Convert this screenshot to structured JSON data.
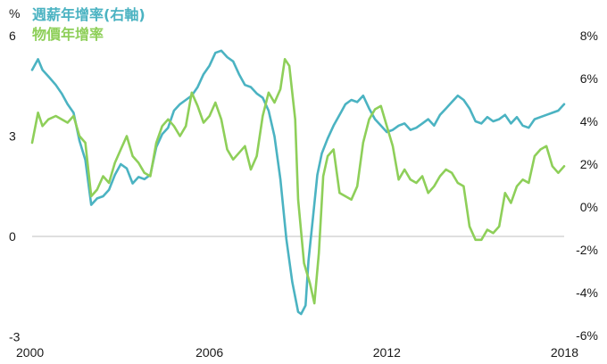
{
  "chart_data": {
    "type": "line",
    "title": "",
    "left_axis_unit": "%",
    "left_ylim": [
      -3,
      6
    ],
    "left_ticks": [
      "6",
      "3",
      "0",
      "-3"
    ],
    "left_tick_values": [
      6,
      3,
      0,
      -3
    ],
    "right_ylim": [
      -6,
      8
    ],
    "right_ticks": [
      "8%",
      "6%",
      "4%",
      "2%",
      "0%",
      "-2%",
      "-4%",
      "-6%"
    ],
    "right_tick_values": [
      8,
      6,
      4,
      2,
      0,
      -2,
      -4,
      -6
    ],
    "xlim": [
      2000,
      2018
    ],
    "x_ticks": [
      "2000",
      "2006",
      "2012",
      "2018"
    ],
    "x_tick_values": [
      2000,
      2006,
      2012,
      2018
    ],
    "grid": false,
    "legend_position": "top-left",
    "series": [
      {
        "name": "週薪年增率(右軸)",
        "axis": "right",
        "color": "#4bb3c2",
        "x": [
          2000.0,
          2000.2,
          2000.35,
          2000.55,
          2000.8,
          2001.0,
          2001.2,
          2001.4,
          2001.6,
          2001.8,
          2002.0,
          2002.2,
          2002.4,
          2002.6,
          2002.8,
          2003.0,
          2003.2,
          2003.4,
          2003.6,
          2003.8,
          2004.0,
          2004.2,
          2004.4,
          2004.6,
          2004.8,
          2005.0,
          2005.2,
          2005.4,
          2005.6,
          2005.8,
          2006.0,
          2006.2,
          2006.4,
          2006.6,
          2006.8,
          2007.0,
          2007.2,
          2007.4,
          2007.6,
          2007.8,
          2008.0,
          2008.2,
          2008.4,
          2008.6,
          2008.8,
          2009.0,
          2009.1,
          2009.25,
          2009.35,
          2009.5,
          2009.65,
          2009.8,
          2010.0,
          2010.2,
          2010.4,
          2010.6,
          2010.8,
          2011.0,
          2011.2,
          2011.4,
          2011.6,
          2011.8,
          2012.0,
          2012.2,
          2012.4,
          2012.6,
          2012.8,
          2013.0,
          2013.2,
          2013.4,
          2013.6,
          2013.8,
          2014.0,
          2014.2,
          2014.4,
          2014.6,
          2014.8,
          2015.0,
          2015.2,
          2015.4,
          2015.6,
          2015.8,
          2016.0,
          2016.2,
          2016.4,
          2016.6,
          2016.8,
          2017.0,
          2017.2,
          2017.4,
          2017.6,
          2017.8,
          2018.0
        ],
        "values": [
          6.4,
          6.9,
          6.4,
          6.1,
          5.7,
          5.3,
          4.8,
          4.4,
          3.1,
          2.2,
          0.1,
          0.4,
          0.5,
          0.8,
          1.5,
          2.0,
          1.8,
          1.1,
          1.4,
          1.3,
          1.5,
          2.8,
          3.4,
          3.7,
          4.5,
          4.8,
          5.0,
          5.2,
          5.6,
          6.2,
          6.6,
          7.2,
          7.3,
          7.0,
          6.8,
          6.2,
          5.7,
          5.6,
          5.3,
          5.1,
          4.5,
          3.3,
          1.3,
          -1.5,
          -3.5,
          -4.9,
          -5.0,
          -4.6,
          -2.5,
          -0.5,
          1.5,
          2.5,
          3.2,
          3.8,
          4.3,
          4.8,
          5.0,
          4.9,
          5.2,
          4.6,
          4.1,
          3.8,
          3.5,
          3.6,
          3.8,
          3.9,
          3.6,
          3.7,
          3.9,
          4.1,
          3.8,
          4.3,
          4.6,
          4.9,
          5.2,
          5.0,
          4.6,
          4.0,
          3.9,
          4.2,
          4.0,
          4.1,
          4.3,
          3.9,
          4.2,
          3.8,
          3.7,
          4.1,
          4.2,
          4.3,
          4.4,
          4.5,
          4.8
        ]
      },
      {
        "name": "物價年增率",
        "axis": "left",
        "color": "#8ecf59",
        "x": [
          2000.0,
          2000.2,
          2000.35,
          2000.55,
          2000.8,
          2001.0,
          2001.2,
          2001.4,
          2001.6,
          2001.8,
          2002.0,
          2002.2,
          2002.4,
          2002.6,
          2002.8,
          2003.0,
          2003.2,
          2003.4,
          2003.6,
          2003.8,
          2004.0,
          2004.2,
          2004.4,
          2004.6,
          2004.8,
          2005.0,
          2005.2,
          2005.4,
          2005.6,
          2005.8,
          2006.0,
          2006.2,
          2006.4,
          2006.6,
          2006.8,
          2007.0,
          2007.2,
          2007.4,
          2007.6,
          2007.8,
          2008.0,
          2008.2,
          2008.4,
          2008.55,
          2008.7,
          2008.9,
          2009.0,
          2009.2,
          2009.4,
          2009.55,
          2009.7,
          2009.85,
          2010.0,
          2010.2,
          2010.4,
          2010.6,
          2010.8,
          2011.0,
          2011.2,
          2011.4,
          2011.6,
          2011.8,
          2012.0,
          2012.2,
          2012.4,
          2012.6,
          2012.8,
          2013.0,
          2013.2,
          2013.4,
          2013.6,
          2013.8,
          2014.0,
          2014.2,
          2014.4,
          2014.6,
          2014.8,
          2015.0,
          2015.2,
          2015.4,
          2015.6,
          2015.8,
          2016.0,
          2016.2,
          2016.4,
          2016.6,
          2016.8,
          2017.0,
          2017.2,
          2017.4,
          2017.6,
          2017.8,
          2018.0
        ],
        "values": [
          2.8,
          3.7,
          3.3,
          3.5,
          3.6,
          3.5,
          3.4,
          3.6,
          3.0,
          2.8,
          1.2,
          1.4,
          1.8,
          1.6,
          2.2,
          2.6,
          3.0,
          2.4,
          2.2,
          1.9,
          1.8,
          2.8,
          3.3,
          3.5,
          3.3,
          3.0,
          3.3,
          4.3,
          3.9,
          3.4,
          3.6,
          4.0,
          3.5,
          2.6,
          2.3,
          2.5,
          2.7,
          2.0,
          2.4,
          3.6,
          4.3,
          4.0,
          4.4,
          5.3,
          5.1,
          3.5,
          1.1,
          -0.8,
          -1.4,
          -2.0,
          -0.5,
          1.8,
          2.4,
          2.6,
          1.3,
          1.2,
          1.1,
          1.5,
          2.8,
          3.5,
          3.8,
          3.9,
          3.3,
          2.7,
          1.7,
          2.0,
          1.7,
          1.6,
          1.8,
          1.3,
          1.5,
          1.8,
          2.0,
          1.9,
          1.6,
          1.5,
          0.3,
          -0.1,
          -0.1,
          0.2,
          0.1,
          0.3,
          1.3,
          1.0,
          1.5,
          1.7,
          1.6,
          2.4,
          2.6,
          2.7,
          2.1,
          1.9,
          2.1
        ]
      }
    ]
  }
}
